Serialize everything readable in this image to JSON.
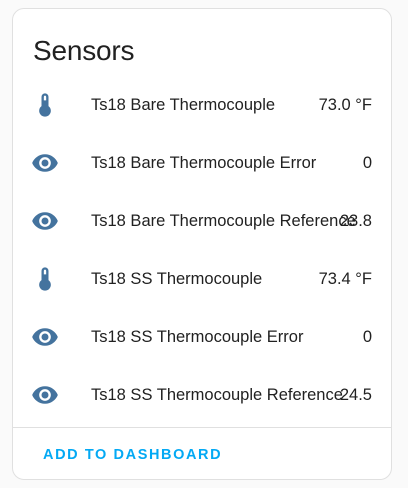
{
  "card": {
    "title": "Sensors",
    "action_label": "ADD TO DASHBOARD"
  },
  "colors": {
    "icon": "#44739e",
    "action": "#03a9f4",
    "text": "#212121"
  },
  "sensors": [
    {
      "icon": "thermometer-icon",
      "name": "Ts18 Bare Thermocouple",
      "value": "73.0 °F"
    },
    {
      "icon": "eye-icon",
      "name": "Ts18 Bare Thermocouple Error",
      "value": "0"
    },
    {
      "icon": "eye-icon",
      "name": "Ts18 Bare Thermocouple Reference",
      "value": "23.8"
    },
    {
      "icon": "thermometer-icon",
      "name": "Ts18 SS Thermocouple",
      "value": "73.4 °F"
    },
    {
      "icon": "eye-icon",
      "name": "Ts18 SS Thermocouple Error",
      "value": "0"
    },
    {
      "icon": "eye-icon",
      "name": "Ts18 SS Thermocouple Reference",
      "value": "24.5"
    }
  ]
}
